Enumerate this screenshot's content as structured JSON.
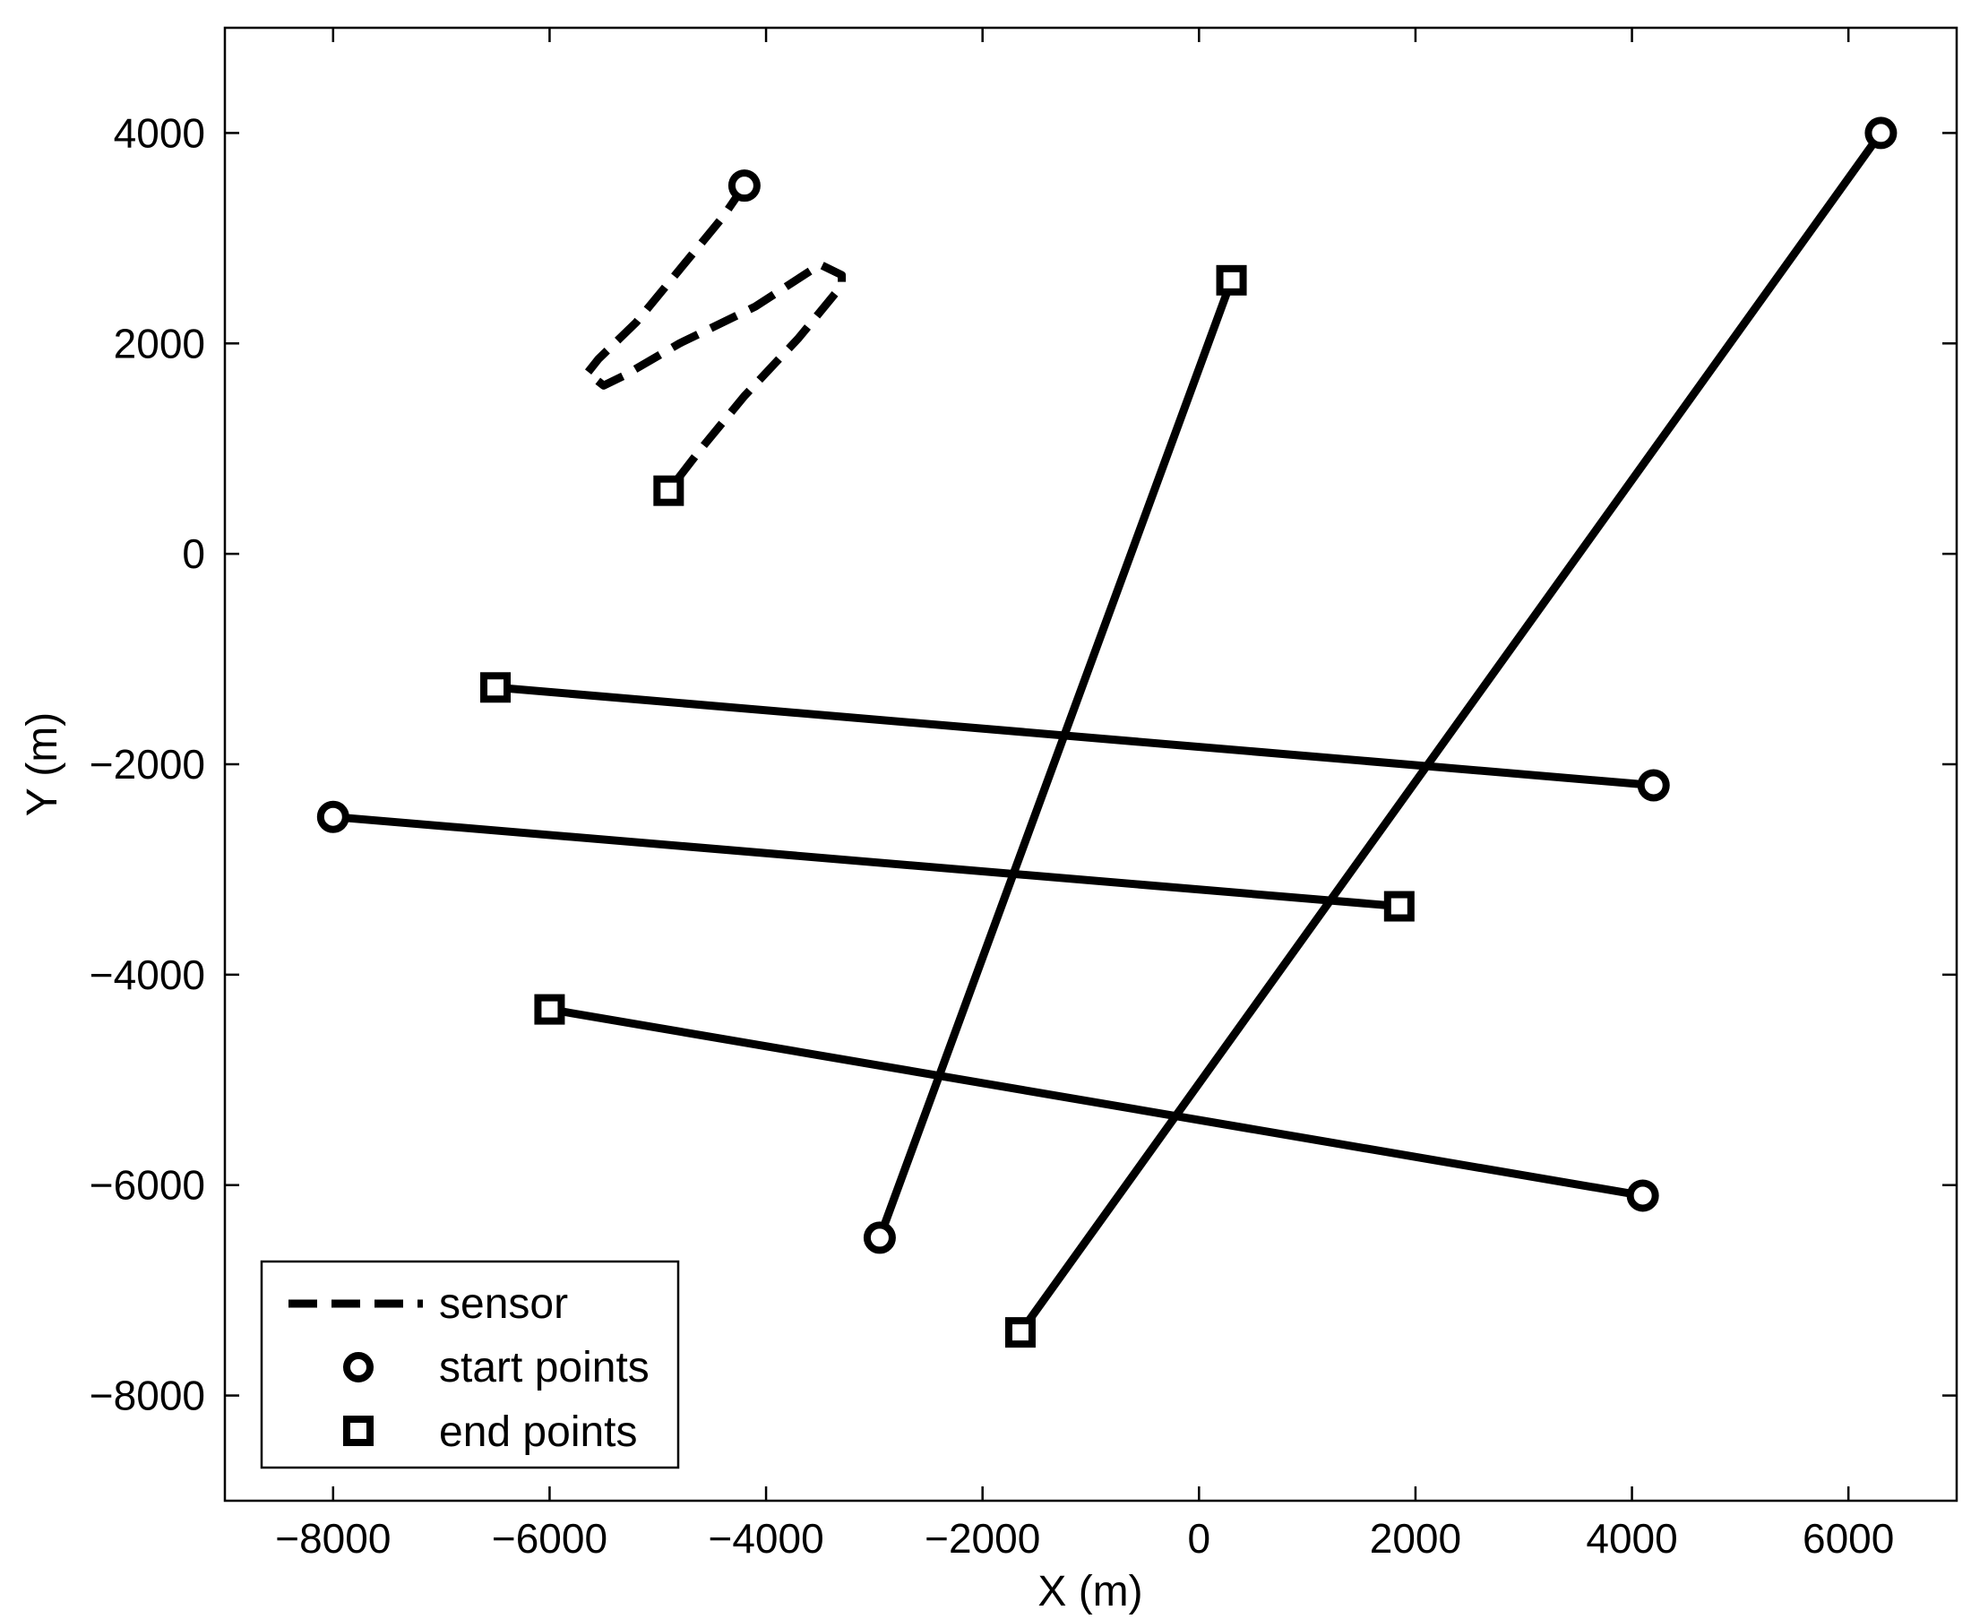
{
  "chart_data": {
    "type": "line",
    "xlabel": "X (m)",
    "ylabel": "Y (m)",
    "xlim": [
      -9000,
      7000
    ],
    "ylim": [
      -9000,
      5000
    ],
    "xticks": [
      -8000,
      -6000,
      -4000,
      -2000,
      0,
      2000,
      4000,
      6000
    ],
    "yticks": [
      -8000,
      -6000,
      -4000,
      -2000,
      0,
      2000,
      4000
    ],
    "xtick_labels": [
      "−8000",
      "−6000",
      "−4000",
      "−2000",
      "0",
      "2000",
      "4000",
      "6000"
    ],
    "ytick_labels": [
      "−8000",
      "−6000",
      "−4000",
      "−2000",
      "0",
      "2000",
      "4000"
    ],
    "grid": false,
    "legend": {
      "position": "bottom-left",
      "entries": [
        {
          "label": "sensor",
          "marker": "dashed-line"
        },
        {
          "label": "start points",
          "marker": "circle"
        },
        {
          "label": "end points",
          "marker": "square"
        }
      ]
    },
    "sensor_path": [
      [
        -4200,
        3500
      ],
      [
        -4400,
        3200
      ],
      [
        -4800,
        2700
      ],
      [
        -5200,
        2200
      ],
      [
        -5550,
        1850
      ],
      [
        -5650,
        1720
      ],
      [
        -5650,
        1720
      ],
      [
        -5500,
        1600
      ],
      [
        -5300,
        1700
      ],
      [
        -4800,
        2000
      ],
      [
        -4100,
        2350
      ],
      [
        -3500,
        2750
      ],
      [
        -3300,
        2650
      ],
      [
        -3300,
        2550
      ],
      [
        -3700,
        2050
      ],
      [
        -4200,
        1500
      ],
      [
        -4600,
        1000
      ],
      [
        -4900,
        600
      ]
    ],
    "series": [
      {
        "start": [
          -4200,
          3500
        ],
        "end": [
          -4900,
          600
        ],
        "style": "dashed"
      },
      {
        "start": [
          6300,
          4000
        ],
        "end": [
          -1650,
          -7400
        ],
        "style": "solid"
      },
      {
        "start": [
          -2950,
          -6500
        ],
        "end": [
          300,
          2600
        ],
        "style": "solid"
      },
      {
        "start": [
          4200,
          -2200
        ],
        "end": [
          -6500,
          -1270
        ],
        "style": "solid"
      },
      {
        "start": [
          -8000,
          -2500
        ],
        "end": [
          1850,
          -3350
        ],
        "style": "solid"
      },
      {
        "start": [
          4100,
          -6100
        ],
        "end": [
          -6000,
          -4330
        ],
        "style": "solid"
      }
    ]
  }
}
